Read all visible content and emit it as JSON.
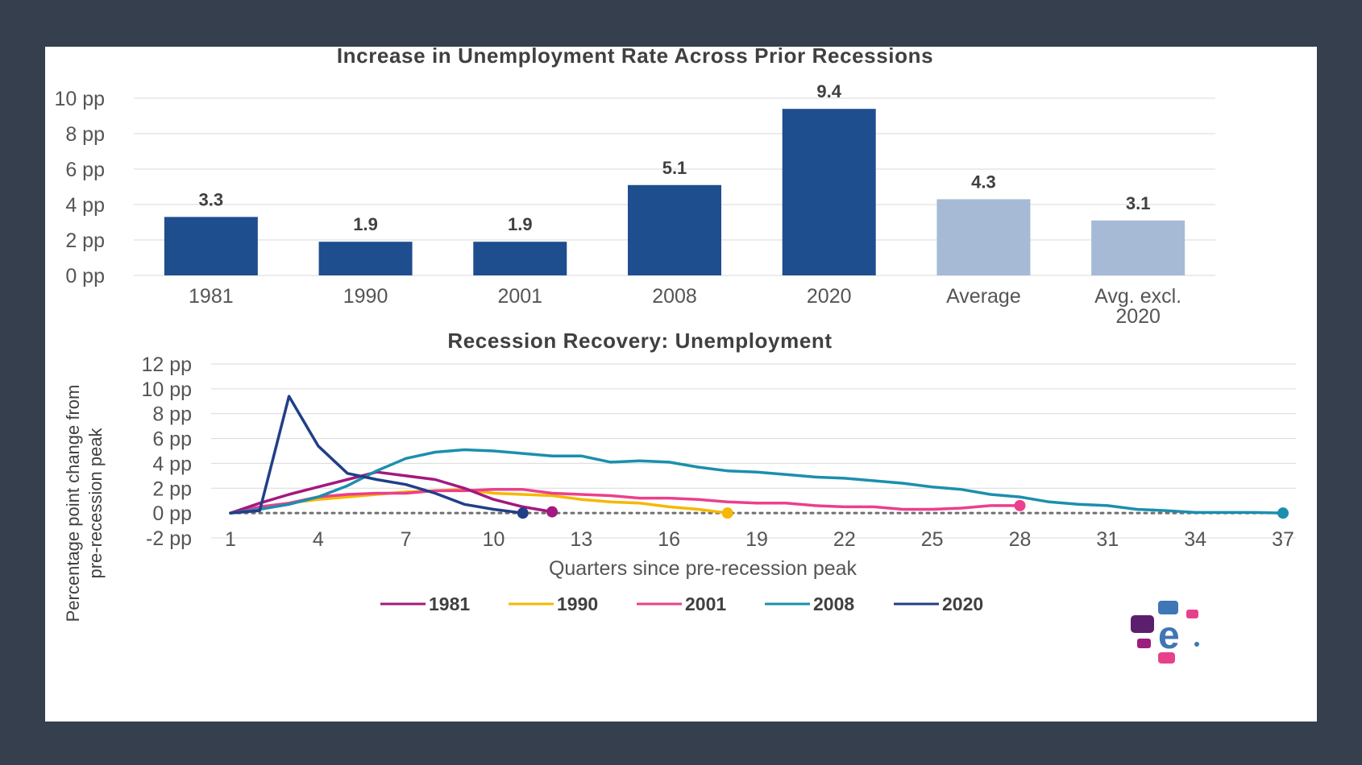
{
  "colors": {
    "bar_dark": "#1f4e8f",
    "bar_light": "#a6bad6",
    "grid": "#d9d9d9",
    "zero_line": "#6f6f6f",
    "series_1981": "#a3197f",
    "series_1990": "#f5b800",
    "series_2001": "#ec3f8c",
    "series_2008": "#1b8fad",
    "series_2020": "#213f87",
    "logo_purple": "#5b1f6e",
    "logo_blue": "#3f76b5",
    "logo_pink": "#e8418c",
    "logo_magenta": "#9c1f7f"
  },
  "logo": {
    "icon": "experian-logo-icon"
  },
  "chart_data": [
    {
      "type": "bar",
      "title": "Increase in Unemployment Rate Across Prior Recessions",
      "categories": [
        "1981",
        "1990",
        "2001",
        "2008",
        "2020",
        "Average",
        "Avg. excl. 2020"
      ],
      "category_lines": [
        [
          "1981"
        ],
        [
          "1990"
        ],
        [
          "2001"
        ],
        [
          "2008"
        ],
        [
          "2020"
        ],
        [
          "Average"
        ],
        [
          "Avg. excl.",
          "2020"
        ]
      ],
      "values": [
        3.3,
        1.9,
        1.9,
        5.1,
        9.4,
        4.3,
        3.1
      ],
      "value_labels": [
        "3.3",
        "1.9",
        "1.9",
        "5.1",
        "9.4",
        "4.3",
        "3.1"
      ],
      "highlight": [
        false,
        false,
        false,
        false,
        false,
        true,
        true
      ],
      "ylim": [
        0,
        10
      ],
      "yticks": [
        0,
        2,
        4,
        6,
        8,
        10
      ],
      "ytick_labels": [
        "0 pp",
        "2 pp",
        "4 pp",
        "6 pp",
        "8 pp",
        "10 pp"
      ],
      "grid": true,
      "xlabel": "",
      "ylabel": ""
    },
    {
      "type": "line",
      "title": "Recession Recovery: Unemployment",
      "xlabel": "Quarters since pre-recession peak",
      "ylabel_lines": [
        "Percentage point change from",
        "pre-recession peak"
      ],
      "xlim": [
        1,
        37
      ],
      "xticks": [
        1,
        4,
        7,
        10,
        13,
        16,
        19,
        22,
        25,
        28,
        31,
        34,
        37
      ],
      "xtick_labels": [
        "1",
        "4",
        "7",
        "10",
        "13",
        "16",
        "19",
        "22",
        "25",
        "28",
        "31",
        "34",
        "37"
      ],
      "ylim": [
        -2,
        12
      ],
      "yticks": [
        -2,
        0,
        2,
        4,
        6,
        8,
        10,
        12
      ],
      "ytick_labels": [
        "-2 pp",
        "0 pp",
        "2 pp",
        "4 pp",
        "6 pp",
        "8 pp",
        "10 pp",
        "12 pp"
      ],
      "grid": true,
      "legend_position": "bottom",
      "reference_line": 0,
      "series": [
        {
          "name": "1981",
          "x": [
            1,
            2,
            3,
            4,
            5,
            6,
            7,
            8,
            9,
            10,
            11,
            12
          ],
          "y": [
            0,
            0.8,
            1.5,
            2.1,
            2.7,
            3.3,
            3.0,
            2.7,
            2.0,
            1.1,
            0.5,
            0.1
          ]
        },
        {
          "name": "1990",
          "x": [
            1,
            2,
            3,
            4,
            5,
            6,
            7,
            8,
            9,
            10,
            11,
            12,
            13,
            14,
            15,
            16,
            17,
            18
          ],
          "y": [
            0,
            0.4,
            0.8,
            1.1,
            1.3,
            1.5,
            1.7,
            1.8,
            1.9,
            1.6,
            1.5,
            1.4,
            1.1,
            0.9,
            0.8,
            0.5,
            0.3,
            0.0
          ]
        },
        {
          "name": "2001",
          "x": [
            1,
            2,
            3,
            4,
            5,
            6,
            7,
            8,
            9,
            10,
            11,
            12,
            13,
            14,
            15,
            16,
            17,
            18,
            19,
            20,
            21,
            22,
            23,
            24,
            25,
            26,
            27,
            28
          ],
          "y": [
            0,
            0.5,
            0.8,
            1.3,
            1.5,
            1.6,
            1.6,
            1.8,
            1.8,
            1.9,
            1.9,
            1.6,
            1.5,
            1.4,
            1.2,
            1.2,
            1.1,
            0.9,
            0.8,
            0.8,
            0.6,
            0.5,
            0.5,
            0.3,
            0.3,
            0.4,
            0.6,
            0.6
          ]
        },
        {
          "name": "2008",
          "x": [
            1,
            2,
            3,
            4,
            5,
            6,
            7,
            8,
            9,
            10,
            11,
            12,
            13,
            14,
            15,
            16,
            17,
            18,
            19,
            20,
            21,
            22,
            23,
            24,
            25,
            26,
            27,
            28,
            29,
            30,
            31,
            32,
            33,
            34,
            35,
            36,
            37
          ],
          "y": [
            0,
            0.3,
            0.7,
            1.3,
            2.2,
            3.4,
            4.4,
            4.9,
            5.1,
            5.0,
            4.8,
            4.6,
            4.6,
            4.1,
            4.2,
            4.1,
            3.7,
            3.4,
            3.3,
            3.1,
            2.9,
            2.8,
            2.6,
            2.4,
            2.1,
            1.9,
            1.5,
            1.3,
            0.9,
            0.7,
            0.6,
            0.3,
            0.2,
            0.05,
            0.05,
            0.05,
            0.0
          ]
        },
        {
          "name": "2020",
          "x": [
            1,
            2,
            3,
            4,
            5,
            6,
            7,
            8,
            9,
            10,
            11
          ],
          "y": [
            0,
            0.2,
            9.4,
            5.4,
            3.2,
            2.7,
            2.3,
            1.6,
            0.7,
            0.3,
            0.0
          ]
        }
      ]
    }
  ]
}
